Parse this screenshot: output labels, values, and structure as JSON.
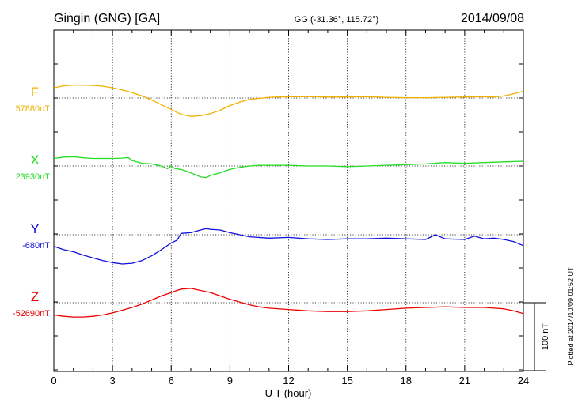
{
  "header": {
    "station": "Gingin (GNG)  [GA]",
    "coords": "GG (-31.36°, 115.72°)",
    "date": "2014/09/08"
  },
  "footer_note": "Plotted at 2014/10/09 01:52 UT",
  "chart_data": {
    "type": "line",
    "title": "Gingin (GNG)  [GA]",
    "xlabel": "U T (hour)",
    "xlim": [
      0,
      24
    ],
    "xticks": [
      "0",
      "3",
      "6",
      "9",
      "12",
      "15",
      "18",
      "21",
      "24"
    ],
    "scale_bar_label": "100 nT",
    "scale_bar_nT": 100,
    "grid": true,
    "series": [
      {
        "name": "F",
        "baseline_label": "57880nT",
        "color": "#f0b000",
        "x": [
          0,
          0.5,
          1,
          1.5,
          2,
          2.5,
          3,
          3.5,
          4,
          4.5,
          5,
          5.5,
          6,
          6.5,
          7,
          7.5,
          8,
          8.5,
          9,
          9.5,
          10,
          11,
          12,
          13,
          14,
          15,
          16,
          17,
          18,
          19,
          20,
          21,
          22,
          22.5,
          23,
          23.5,
          24
        ],
        "values": [
          15,
          18,
          19,
          19,
          18.5,
          17.5,
          15,
          12,
          8,
          3,
          -3,
          -10,
          -17,
          -24,
          -27,
          -26,
          -23,
          -18,
          -11,
          -6,
          -2,
          1,
          2,
          2,
          1.5,
          1.5,
          2,
          1,
          0.5,
          0.5,
          1,
          1.5,
          2,
          1.5,
          3,
          6,
          10
        ]
      },
      {
        "name": "X",
        "baseline_label": "23930nT",
        "color": "#22dd22",
        "x": [
          0,
          0.5,
          1,
          1.5,
          2,
          2.5,
          3,
          3.5,
          3.8,
          4,
          4.5,
          5,
          5.5,
          5.8,
          6,
          6.2,
          6.5,
          7,
          7.5,
          7.8,
          8,
          8.5,
          9,
          9.5,
          10,
          10.5,
          11,
          12,
          13,
          14,
          15,
          16,
          17,
          18,
          19,
          20,
          21,
          22,
          23,
          24
        ],
        "values": [
          11,
          13,
          13.5,
          12,
          11,
          11,
          11,
          11.5,
          12.5,
          8,
          4,
          3,
          0,
          -4,
          0,
          -4,
          -5,
          -10,
          -16,
          -17,
          -14,
          -10,
          -5,
          -2,
          0,
          1,
          1,
          1,
          0,
          0,
          -1,
          0,
          1,
          2,
          3,
          5,
          4,
          5,
          6,
          7
        ]
      },
      {
        "name": "Y",
        "baseline_label": "-680nT",
        "color": "#1010dd",
        "x": [
          0,
          0.5,
          1,
          1.5,
          2,
          2.5,
          3,
          3.5,
          4,
          4.5,
          5,
          5.5,
          6,
          6.3,
          6.5,
          7,
          7.5,
          7.8,
          8,
          8.5,
          9,
          9.5,
          10,
          11,
          12,
          13,
          14,
          15,
          16,
          17,
          18,
          19,
          19.5,
          20,
          21,
          21.5,
          22,
          22.5,
          23,
          23.5,
          24
        ],
        "values": [
          -17,
          -22,
          -25,
          -30,
          -34,
          -38,
          -41,
          -43,
          -42,
          -38,
          -31,
          -22,
          -12,
          -8,
          2,
          3,
          7,
          9,
          8,
          7,
          3,
          0,
          -3,
          -5,
          -4,
          -6,
          -7,
          -6,
          -6,
          -5,
          -6,
          -7,
          0,
          -6,
          -7,
          -2,
          -6,
          -5,
          -7,
          -10,
          -16
        ]
      },
      {
        "name": "Z",
        "baseline_label": "-52690nT",
        "color": "#ee0000",
        "x": [
          0,
          0.5,
          1,
          1.5,
          2,
          2.5,
          3,
          3.5,
          4,
          4.5,
          5,
          5.5,
          6,
          6.5,
          7,
          7.5,
          8,
          8.5,
          9,
          9.5,
          10,
          10.5,
          11,
          12,
          13,
          14,
          15,
          16,
          17,
          18,
          19,
          20,
          21,
          22,
          22.5,
          23,
          23.5,
          24
        ],
        "values": [
          -18,
          -20,
          -21,
          -21,
          -20,
          -18,
          -15,
          -11,
          -7,
          -2,
          4,
          10,
          15,
          20,
          21,
          18,
          15,
          10,
          5,
          1,
          -3,
          -6,
          -8,
          -10,
          -12,
          -13,
          -13,
          -12,
          -10,
          -8,
          -7,
          -6,
          -7,
          -7,
          -8,
          -9,
          -12,
          -16
        ]
      }
    ]
  }
}
